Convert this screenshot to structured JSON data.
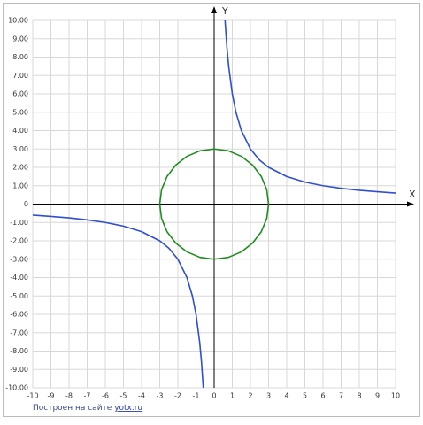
{
  "chart_data": {
    "type": "line",
    "x_label": "X",
    "y_label": "Y",
    "xlim": [
      -10,
      10
    ],
    "ylim": [
      -10,
      10
    ],
    "xticks": [
      -10,
      -9,
      -8,
      -7,
      -6,
      -5,
      -4,
      -3,
      -2,
      -1,
      0,
      1,
      2,
      3,
      4,
      5,
      6,
      7,
      8,
      9,
      10
    ],
    "yticks": [
      {
        "value": 10,
        "label": "10.00"
      },
      {
        "value": 9,
        "label": "9.00"
      },
      {
        "value": 8,
        "label": "8.00"
      },
      {
        "value": 7,
        "label": "7.00"
      },
      {
        "value": 6,
        "label": "6.00"
      },
      {
        "value": 5,
        "label": "5.00"
      },
      {
        "value": 4,
        "label": "4.00"
      },
      {
        "value": 3,
        "label": "3.00"
      },
      {
        "value": 2,
        "label": "2.00"
      },
      {
        "value": 1,
        "label": "1.00"
      },
      0,
      {
        "value": -1,
        "label": "-1.00"
      },
      {
        "value": -2,
        "label": "-2.00"
      },
      {
        "value": -3,
        "label": "-3.00"
      },
      {
        "value": -4,
        "label": "-4.00"
      },
      {
        "value": -5,
        "label": "-5.00"
      },
      {
        "value": -6,
        "label": "-6.00"
      },
      {
        "value": -7,
        "label": "-7.00"
      },
      {
        "value": -8,
        "label": "-8.00"
      },
      {
        "value": -9,
        "label": "-9.00"
      },
      {
        "value": -10,
        "label": "-10.00"
      }
    ],
    "grid": true,
    "series": [
      {
        "color": "#2f4fd0",
        "x": [
          -10,
          -9,
          -8,
          -7,
          -6,
          -5,
          -4,
          -3,
          -2.5,
          -2,
          -1.5,
          -1.2,
          -1,
          -0.8,
          -0.7,
          -0.6,
          0,
          0.6,
          0.7,
          0.8,
          1,
          1.2,
          1.5,
          2,
          2.5,
          3,
          4,
          5,
          6,
          7,
          8,
          9,
          10
        ],
        "values": [
          -0.6,
          -0.67,
          -0.75,
          -0.86,
          -1,
          -1.2,
          -1.5,
          -2,
          -2.4,
          -3,
          -4,
          -5,
          -6,
          -7.5,
          -8.57,
          -10,
          null,
          10,
          8.57,
          7.5,
          6,
          5,
          4,
          3,
          2.4,
          2,
          1.5,
          1.2,
          1,
          0.86,
          0.75,
          0.67,
          0.6
        ]
      },
      {
        "color": "#1e8c1e",
        "x": [
          3,
          2.9,
          2.6,
          2.12,
          1.5,
          0.78,
          0,
          -0.78,
          -1.5,
          -2.12,
          -2.6,
          -2.9,
          -3,
          -2.9,
          -2.6,
          -2.12,
          -1.5,
          -0.78,
          0,
          0.78,
          1.5,
          2.12,
          2.6,
          2.9,
          3
        ],
        "values": [
          0,
          0.78,
          1.5,
          2.12,
          2.6,
          2.9,
          3,
          2.9,
          2.6,
          2.12,
          1.5,
          0.78,
          0,
          -0.78,
          -1.5,
          -2.12,
          -2.6,
          -2.9,
          -3,
          -2.9,
          -2.6,
          -2.12,
          -1.5,
          -0.78,
          0
        ]
      }
    ],
    "footer_text": "Построен на сайте ",
    "footer_link": "yotx.ru"
  }
}
